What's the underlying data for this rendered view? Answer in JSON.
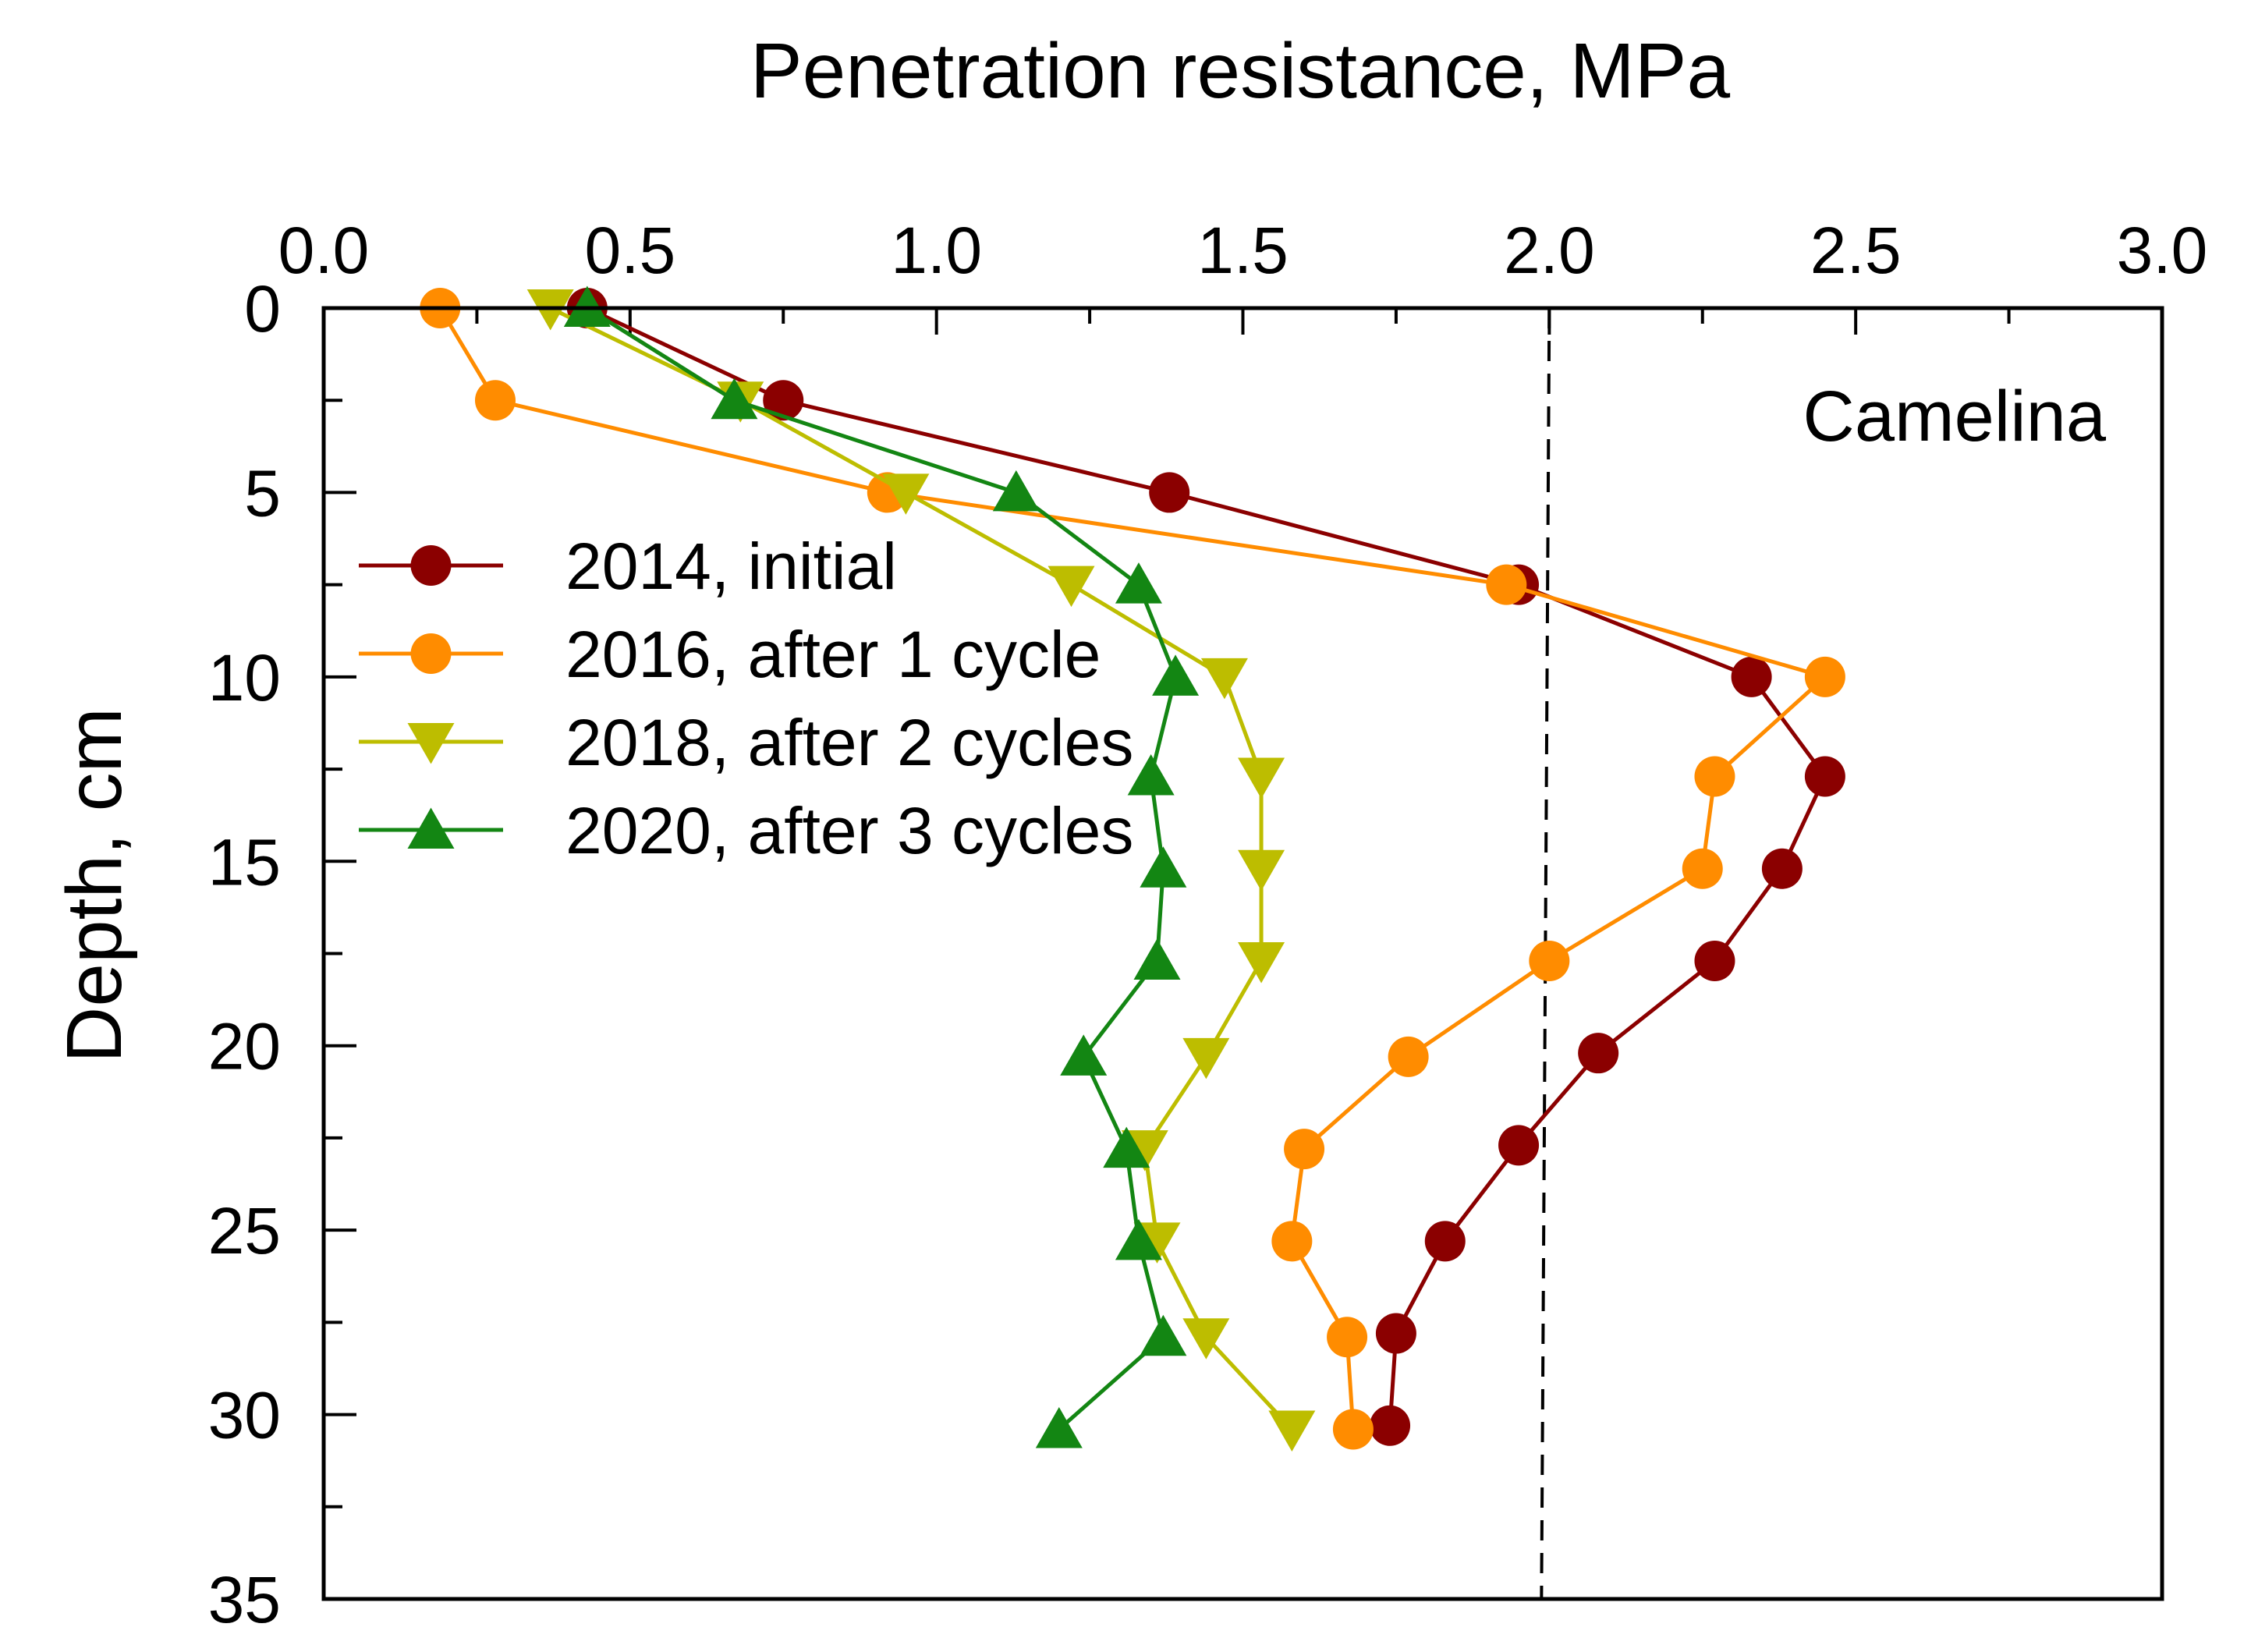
{
  "chart_data": {
    "type": "line",
    "title": "",
    "xlabel": "Penetration resistance, MPa",
    "ylabel": "Depth, cm",
    "xlim": [
      0.0,
      3.0
    ],
    "ylim": [
      0,
      35
    ],
    "y_inverted": true,
    "x_axis_position": "top",
    "x_ticks": [
      "0.0",
      "0.5",
      "1.0",
      "1.5",
      "2.0",
      "2.5",
      "3.0"
    ],
    "y_ticks": [
      "0",
      "5",
      "10",
      "15",
      "20",
      "25",
      "30",
      "35"
    ],
    "annotation": "Camelina",
    "reference_line": {
      "x": 2.0,
      "style": "dashed",
      "color": "#000000"
    },
    "legend_position": "upper-left",
    "series": [
      {
        "name": "2014, initial",
        "color": "#8B0000",
        "marker": "circle",
        "points": [
          {
            "x": 0.43,
            "y": 0
          },
          {
            "x": 0.75,
            "y": 2.5
          },
          {
            "x": 1.38,
            "y": 5
          },
          {
            "x": 1.95,
            "y": 7.5
          },
          {
            "x": 2.33,
            "y": 10
          },
          {
            "x": 2.45,
            "y": 12.7
          },
          {
            "x": 2.38,
            "y": 15.2
          },
          {
            "x": 2.27,
            "y": 17.7
          },
          {
            "x": 2.08,
            "y": 20.2
          },
          {
            "x": 1.95,
            "y": 22.7
          },
          {
            "x": 1.83,
            "y": 25.3
          },
          {
            "x": 1.75,
            "y": 27.8
          },
          {
            "x": 1.74,
            "y": 30.3
          }
        ]
      },
      {
        "name": "2016, after 1 cycle",
        "color": "#FF8C00",
        "marker": "circle",
        "points": [
          {
            "x": 0.19,
            "y": 0
          },
          {
            "x": 0.28,
            "y": 2.5
          },
          {
            "x": 0.92,
            "y": 5
          },
          {
            "x": 1.93,
            "y": 7.5
          },
          {
            "x": 2.45,
            "y": 10
          },
          {
            "x": 2.27,
            "y": 12.7
          },
          {
            "x": 2.25,
            "y": 15.2
          },
          {
            "x": 2.0,
            "y": 17.7
          },
          {
            "x": 1.77,
            "y": 20.3
          },
          {
            "x": 1.6,
            "y": 22.8
          },
          {
            "x": 1.58,
            "y": 25.3
          },
          {
            "x": 1.67,
            "y": 27.9
          },
          {
            "x": 1.68,
            "y": 30.4
          }
        ]
      },
      {
        "name": "2018, after 2 cycles",
        "color": "#BDBD00",
        "marker": "triangle-down",
        "points": [
          {
            "x": 0.37,
            "y": 0
          },
          {
            "x": 0.68,
            "y": 2.5
          },
          {
            "x": 0.95,
            "y": 5
          },
          {
            "x": 1.22,
            "y": 7.5
          },
          {
            "x": 1.47,
            "y": 10
          },
          {
            "x": 1.53,
            "y": 12.7
          },
          {
            "x": 1.53,
            "y": 15.2
          },
          {
            "x": 1.53,
            "y": 17.7
          },
          {
            "x": 1.44,
            "y": 20.3
          },
          {
            "x": 1.34,
            "y": 22.8
          },
          {
            "x": 1.36,
            "y": 25.3
          },
          {
            "x": 1.44,
            "y": 27.9
          },
          {
            "x": 1.58,
            "y": 30.4
          }
        ]
      },
      {
        "name": "2020, after 3 cycles",
        "color": "#138613",
        "marker": "triangle-up",
        "points": [
          {
            "x": 0.43,
            "y": 0
          },
          {
            "x": 0.67,
            "y": 2.5
          },
          {
            "x": 1.13,
            "y": 5
          },
          {
            "x": 1.33,
            "y": 7.5
          },
          {
            "x": 1.39,
            "y": 10
          },
          {
            "x": 1.35,
            "y": 12.7
          },
          {
            "x": 1.37,
            "y": 15.2
          },
          {
            "x": 1.36,
            "y": 17.7
          },
          {
            "x": 1.24,
            "y": 20.3
          },
          {
            "x": 1.31,
            "y": 22.8
          },
          {
            "x": 1.33,
            "y": 25.3
          },
          {
            "x": 1.37,
            "y": 27.9
          },
          {
            "x": 1.2,
            "y": 30.4
          }
        ]
      }
    ]
  }
}
